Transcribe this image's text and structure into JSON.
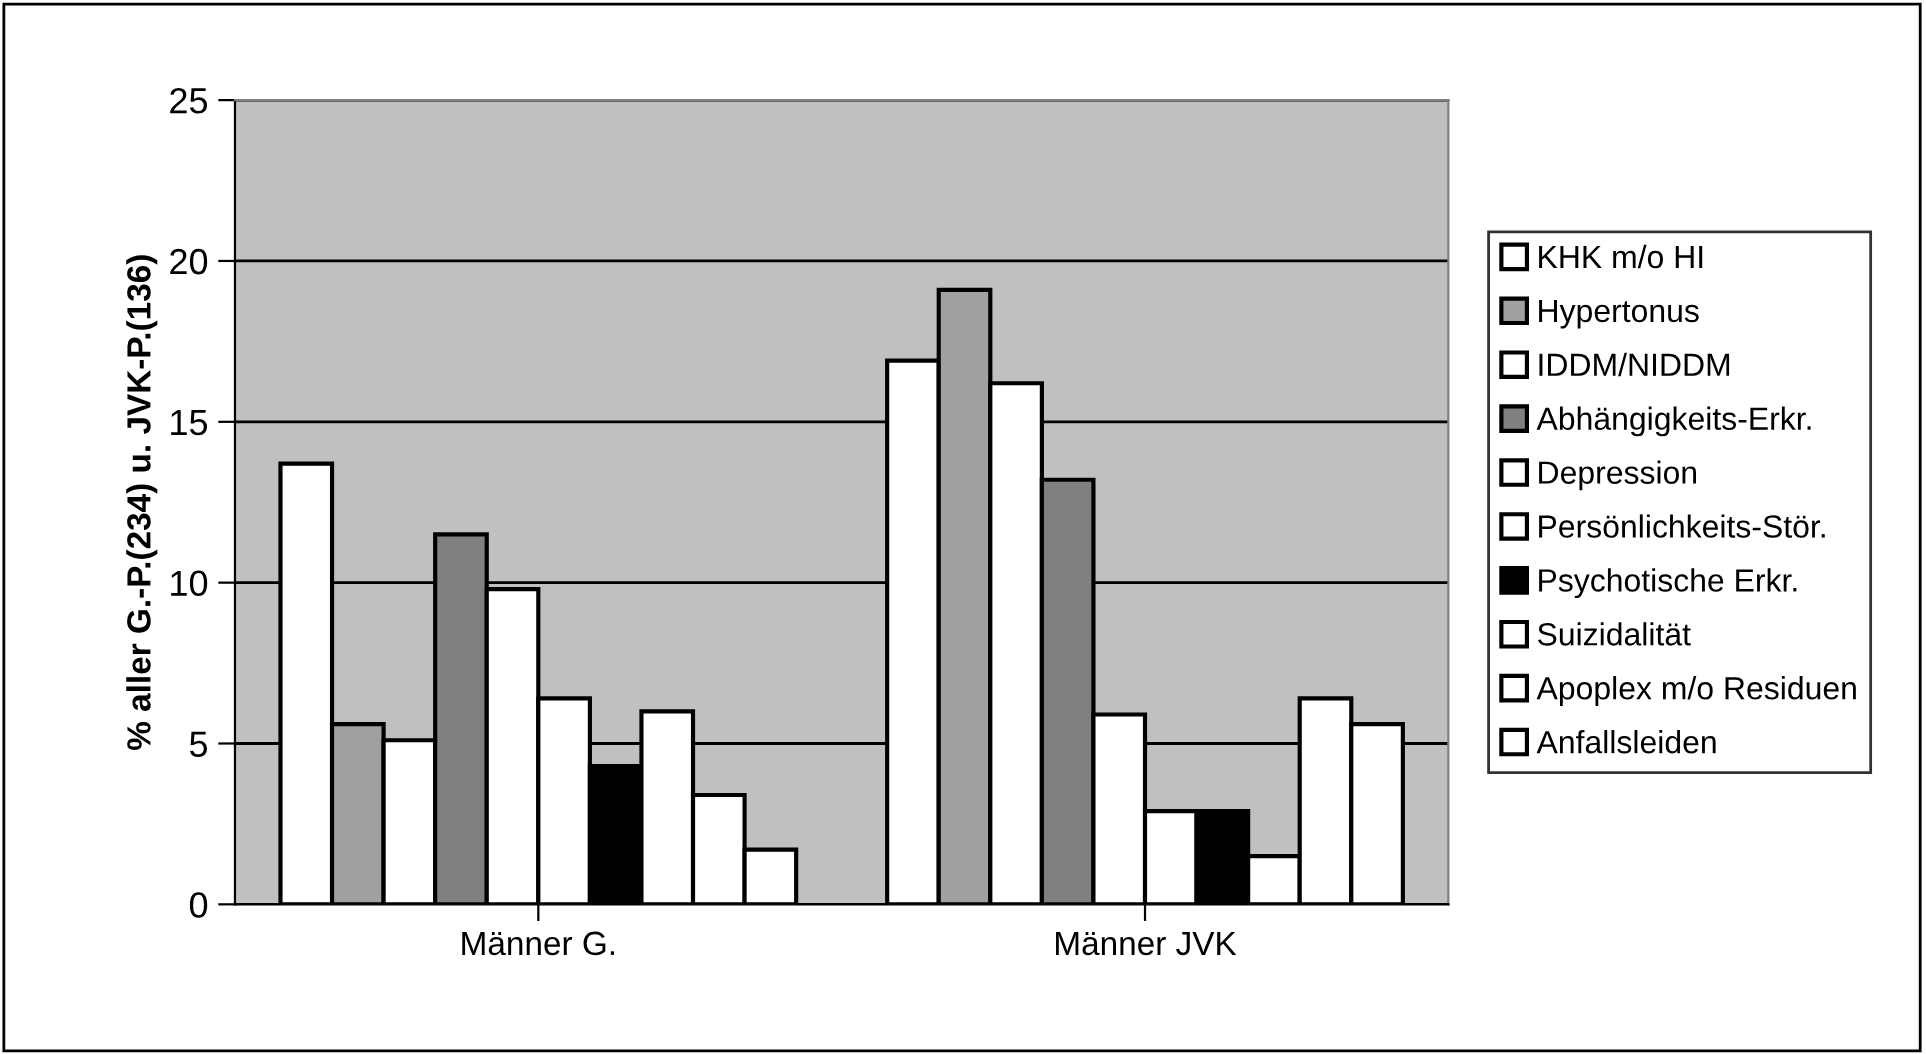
{
  "chart_data": {
    "type": "bar",
    "ylabel": "% aller G.-P.(234) u. JVK-P.(136)",
    "categories": [
      "Männer G.",
      "Männer JVK"
    ],
    "series": [
      {
        "name": "KHK m/o HI",
        "color": "#ffffff",
        "values": [
          13.7,
          16.9
        ]
      },
      {
        "name": "Hypertonus",
        "color": "#a0a0a0",
        "values": [
          5.6,
          19.1
        ]
      },
      {
        "name": "IDDM/NIDDM",
        "color": "#ffffff",
        "values": [
          5.1,
          16.2
        ]
      },
      {
        "name": "Abhängigkeits-Erkr.",
        "color": "#808080",
        "values": [
          11.5,
          13.2
        ]
      },
      {
        "name": "Depression",
        "color": "#ffffff",
        "values": [
          9.8,
          5.9
        ]
      },
      {
        "name": "Persönlichkeits-Stör.",
        "color": "#ffffff",
        "values": [
          6.4,
          2.9
        ]
      },
      {
        "name": "Psychotische Erkr.",
        "color": "#000000",
        "values": [
          4.3,
          2.9
        ]
      },
      {
        "name": "Suizidalität",
        "color": "#ffffff",
        "values": [
          6.0,
          1.5
        ]
      },
      {
        "name": "Apoplex m/o Residuen",
        "color": "#ffffff",
        "values": [
          3.4,
          6.4
        ]
      },
      {
        "name": "Anfallsleiden",
        "color": "#ffffff",
        "values": [
          1.7,
          5.6
        ]
      }
    ],
    "ylim": [
      0,
      25
    ],
    "yticks": [
      0,
      5,
      10,
      15,
      20,
      25
    ],
    "grid": "y",
    "legend": "right"
  }
}
